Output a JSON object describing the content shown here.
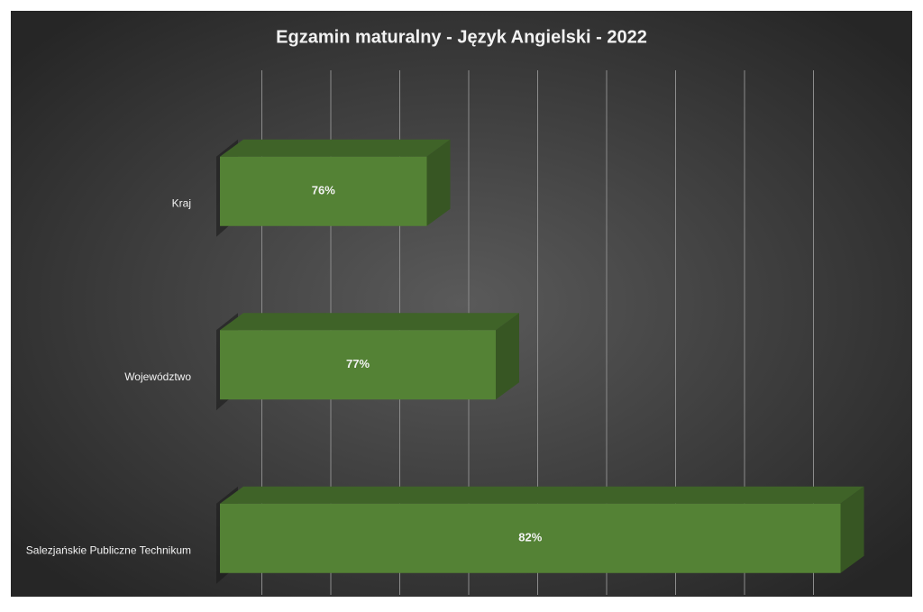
{
  "chart_data": {
    "type": "bar3d",
    "orientation": "horizontal",
    "title": "Egzamin maturalny - Język Angielski - 2022",
    "categories": [
      "Kraj",
      "Województwo",
      "Salezjańskie Publiczne Technikum"
    ],
    "values": [
      76,
      77,
      82
    ],
    "value_labels": [
      "76%",
      "77%",
      "82%"
    ],
    "color": "#548235",
    "xlim": [
      73,
      83
    ],
    "xticks": [
      74,
      75,
      76,
      77,
      78,
      79,
      80,
      81,
      82
    ],
    "grid": true
  }
}
